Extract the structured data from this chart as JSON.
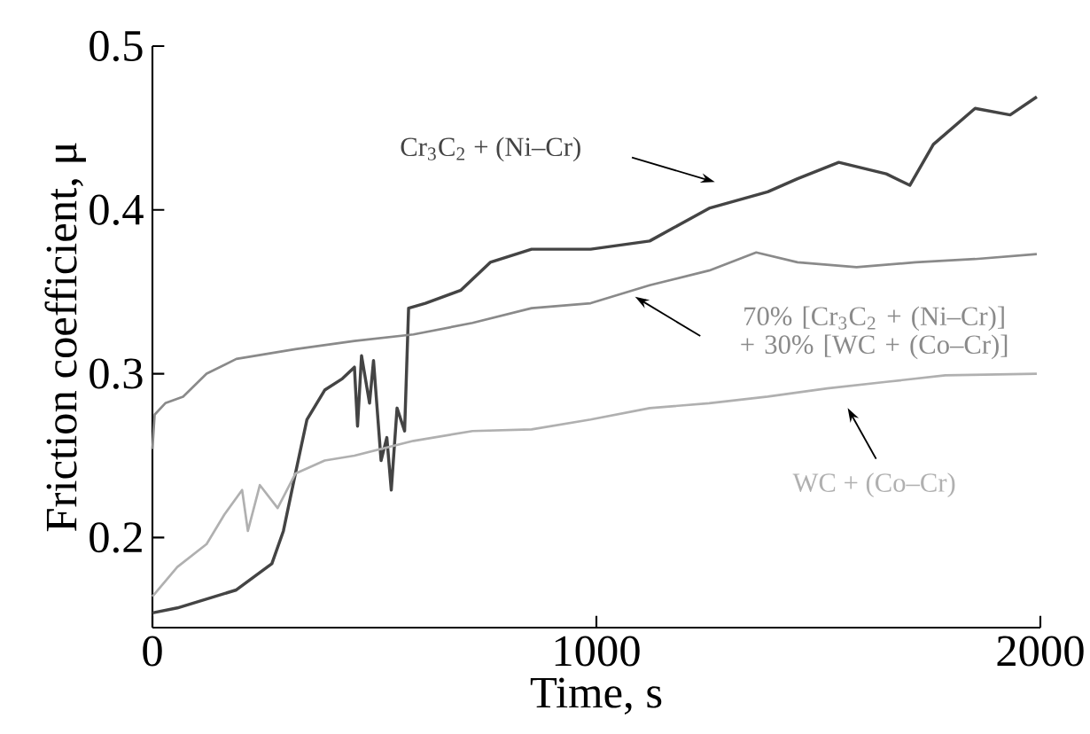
{
  "chart_data": {
    "type": "line",
    "xlabel": "Time, s",
    "ylabel": "Friction coefficient, μ",
    "xlim": [
      0,
      2000
    ],
    "ylim": [
      0.145,
      0.5
    ],
    "xticks": [
      0,
      1000,
      2000
    ],
    "yticks": [
      0.2,
      0.3,
      0.4,
      0.5
    ],
    "series": [
      {
        "name": "Cr$_{3}$C$_{2}$ + (Ni–Cr)",
        "color": "#444444",
        "x": [
          0,
          56,
          189,
          269,
          295,
          322,
          348,
          388,
          428,
          455,
          462,
          471,
          489,
          498,
          515,
          528,
          538,
          551,
          568,
          577,
          615,
          695,
          761,
          854,
          987,
          1120,
          1254,
          1386,
          1453,
          1546,
          1653,
          1706,
          1759,
          1853,
          1932,
          1992
        ],
        "values": [
          0.154,
          0.157,
          0.168,
          0.184,
          0.204,
          0.239,
          0.272,
          0.29,
          0.297,
          0.304,
          0.268,
          0.311,
          0.282,
          0.308,
          0.247,
          0.261,
          0.229,
          0.279,
          0.265,
          0.34,
          0.343,
          0.351,
          0.368,
          0.376,
          0.376,
          0.381,
          0.401,
          0.411,
          0.419,
          0.429,
          0.422,
          0.415,
          0.44,
          0.462,
          0.458,
          0.469
        ]
      },
      {
        "name": "70% [Cr$_{3}$C$_{2}$ + (Ni–Cr)] + 30% [WC + (Co–Cr)]",
        "color": "#8a8a8a",
        "x": [
          0,
          5,
          29,
          69,
          122,
          189,
          322,
          455,
          588,
          721,
          854,
          987,
          1120,
          1254,
          1360,
          1453,
          1586,
          1719,
          1853,
          1992
        ],
        "values": [
          0.254,
          0.275,
          0.282,
          0.286,
          0.3,
          0.309,
          0.315,
          0.32,
          0.324,
          0.331,
          0.34,
          0.343,
          0.354,
          0.363,
          0.374,
          0.368,
          0.365,
          0.368,
          0.37,
          0.373
        ]
      },
      {
        "name": "WC + (Co–Cr)",
        "color": "#b0b0b0",
        "x": [
          0,
          56,
          122,
          162,
          202,
          215,
          242,
          282,
          322,
          388,
          455,
          588,
          721,
          854,
          987,
          1120,
          1254,
          1386,
          1520,
          1653,
          1786,
          1992
        ],
        "values": [
          0.164,
          0.182,
          0.196,
          0.214,
          0.229,
          0.204,
          0.232,
          0.218,
          0.239,
          0.247,
          0.25,
          0.259,
          0.265,
          0.266,
          0.272,
          0.279,
          0.282,
          0.286,
          0.291,
          0.295,
          0.299,
          0.3
        ]
      }
    ]
  }
}
